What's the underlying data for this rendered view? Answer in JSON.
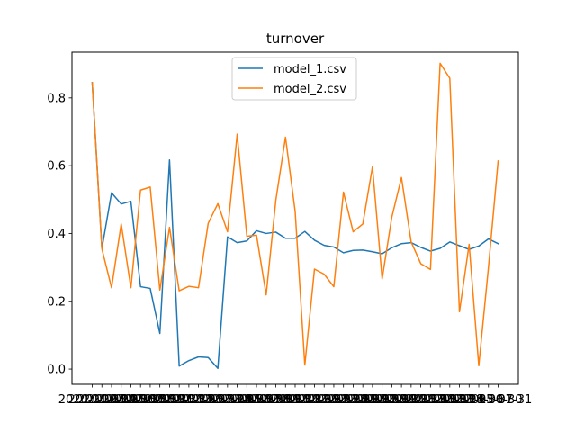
{
  "chart_data": {
    "type": "line",
    "title": "turnover",
    "xlabel": "",
    "ylabel": "",
    "ylim": [
      -0.045,
      0.935
    ],
    "yticks": [
      0.0,
      0.2,
      0.4,
      0.6,
      0.8
    ],
    "ytick_labels": [
      "0.0",
      "0.2",
      "0.4",
      "0.6",
      "0.8"
    ],
    "xtick_labels": [
      "2020-01-31",
      "2020-02-29",
      "2020-03-31",
      "2020-04-30",
      "2020-05-31",
      "2020-06-30",
      "2020-07-31",
      "2020-08-31",
      "2020-09-30",
      "2020-10-31",
      "2020-11-30",
      "2020-12-31",
      "2021-01-31",
      "2021-02-28",
      "2021-03-31",
      "2021-04-30",
      "2021-05-31",
      "2021-06-30",
      "2021-07-31",
      "2021-08-31",
      "2021-09-30",
      "2021-10-31",
      "2021-11-30",
      "2021-12-31",
      "2022-01-31",
      "2022-02-28",
      "2022-03-31",
      "2022-04-30",
      "2022-05-31",
      "2022-06-30",
      "2022-07-31",
      "2022-08-31",
      "2022-09-30",
      "2022-10-31",
      "2022-11-30",
      "2022-12-31",
      "2023-01-31",
      "2023-02-28",
      "2023-03-31",
      "2023-04-30",
      "2023-05-31",
      "2023-06-30",
      "2023-07-31"
    ],
    "legend_position": "upper center",
    "grid": false,
    "series": [
      {
        "name": "model_1.csv",
        "color": "#1f77b4",
        "values": [
          0.845,
          0.355,
          0.52,
          0.487,
          0.495,
          0.243,
          0.238,
          0.105,
          0.617,
          0.009,
          0.025,
          0.036,
          0.034,
          0.002,
          0.39,
          0.373,
          0.378,
          0.408,
          0.4,
          0.404,
          0.386,
          0.386,
          0.406,
          0.38,
          0.365,
          0.36,
          0.343,
          0.35,
          0.351,
          0.346,
          0.34,
          0.358,
          0.37,
          0.373,
          0.359,
          0.348,
          0.356,
          0.375,
          0.364,
          0.353,
          0.363,
          0.384,
          0.37
        ]
      },
      {
        "name": "model_2.csv",
        "color": "#ff7f0e",
        "values": [
          0.845,
          0.355,
          0.24,
          0.428,
          0.24,
          0.528,
          0.537,
          0.233,
          0.418,
          0.231,
          0.244,
          0.24,
          0.43,
          0.488,
          0.405,
          0.693,
          0.392,
          0.395,
          0.219,
          0.498,
          0.684,
          0.465,
          0.012,
          0.295,
          0.28,
          0.243,
          0.522,
          0.405,
          0.428,
          0.597,
          0.266,
          0.448,
          0.565,
          0.375,
          0.311,
          0.294,
          0.902,
          0.858,
          0.169,
          0.368,
          0.01,
          0.3,
          0.614
        ]
      }
    ]
  }
}
